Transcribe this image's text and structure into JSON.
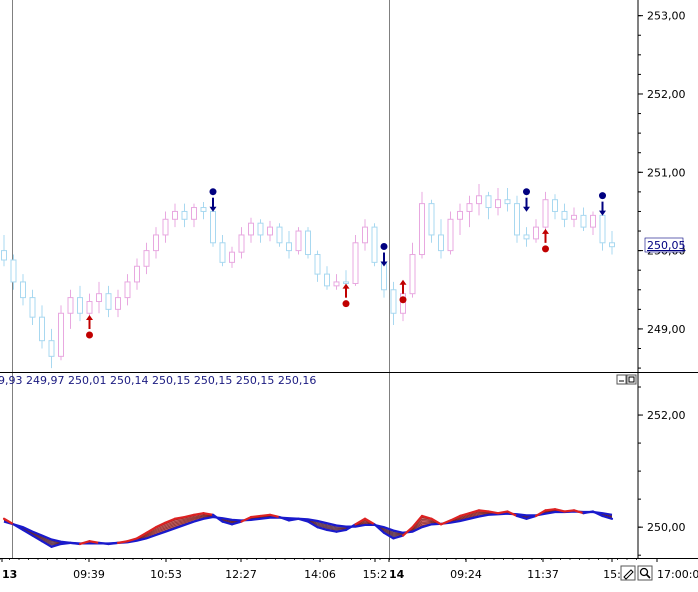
{
  "chart_data": [
    {
      "type": "candlestick",
      "panel": "price",
      "ylim": [
        248.45,
        253.2
      ],
      "y_ticks": [
        "253,00",
        "252,00",
        "251,00",
        "250,00",
        "249,00"
      ],
      "y_tick_values": [
        253,
        252,
        251,
        250,
        249
      ],
      "current_price_label": "250,05",
      "current_price": 250.05,
      "grid": false,
      "colors": {
        "up": "#e8a8e0",
        "down": "#a8d8f0",
        "buy_signal": "#c00000",
        "sell_signal": "#000080"
      },
      "candles": [
        {
          "o": 250.0,
          "h": 250.2,
          "l": 249.8,
          "c": 249.88
        },
        {
          "o": 249.88,
          "h": 249.95,
          "l": 249.5,
          "c": 249.6
        },
        {
          "o": 249.6,
          "h": 249.7,
          "l": 249.3,
          "c": 249.4
        },
        {
          "o": 249.4,
          "h": 249.5,
          "l": 249.05,
          "c": 249.15
        },
        {
          "o": 249.15,
          "h": 249.3,
          "l": 248.75,
          "c": 248.85
        },
        {
          "o": 248.85,
          "h": 249.0,
          "l": 248.5,
          "c": 248.65
        },
        {
          "o": 248.65,
          "h": 249.3,
          "l": 248.6,
          "c": 249.2
        },
        {
          "o": 249.2,
          "h": 249.5,
          "l": 249.0,
          "c": 249.4
        },
        {
          "o": 249.4,
          "h": 249.55,
          "l": 249.1,
          "c": 249.2
        },
        {
          "o": 249.2,
          "h": 249.45,
          "l": 249.0,
          "c": 249.35
        },
        {
          "o": 249.35,
          "h": 249.6,
          "l": 249.2,
          "c": 249.45
        },
        {
          "o": 249.45,
          "h": 249.55,
          "l": 249.15,
          "c": 249.25
        },
        {
          "o": 249.25,
          "h": 249.5,
          "l": 249.15,
          "c": 249.4
        },
        {
          "o": 249.4,
          "h": 249.7,
          "l": 249.3,
          "c": 249.6
        },
        {
          "o": 249.6,
          "h": 249.9,
          "l": 249.5,
          "c": 249.8
        },
        {
          "o": 249.8,
          "h": 250.1,
          "l": 249.7,
          "c": 250.0
        },
        {
          "o": 250.0,
          "h": 250.3,
          "l": 249.9,
          "c": 250.2
        },
        {
          "o": 250.2,
          "h": 250.5,
          "l": 250.1,
          "c": 250.4
        },
        {
          "o": 250.4,
          "h": 250.6,
          "l": 250.3,
          "c": 250.5
        },
        {
          "o": 250.5,
          "h": 250.6,
          "l": 250.3,
          "c": 250.4
        },
        {
          "o": 250.4,
          "h": 250.6,
          "l": 250.3,
          "c": 250.55
        },
        {
          "o": 250.55,
          "h": 250.62,
          "l": 250.4,
          "c": 250.5
        },
        {
          "o": 250.5,
          "h": 250.58,
          "l": 250.05,
          "c": 250.1
        },
        {
          "o": 250.1,
          "h": 250.2,
          "l": 249.8,
          "c": 249.85
        },
        {
          "o": 249.85,
          "h": 250.05,
          "l": 249.78,
          "c": 249.98
        },
        {
          "o": 249.98,
          "h": 250.3,
          "l": 249.9,
          "c": 250.2
        },
        {
          "o": 250.2,
          "h": 250.42,
          "l": 250.1,
          "c": 250.35
        },
        {
          "o": 250.35,
          "h": 250.4,
          "l": 250.1,
          "c": 250.2
        },
        {
          "o": 250.2,
          "h": 250.38,
          "l": 250.12,
          "c": 250.3
        },
        {
          "o": 250.3,
          "h": 250.35,
          "l": 250.05,
          "c": 250.1
        },
        {
          "o": 250.1,
          "h": 250.25,
          "l": 249.9,
          "c": 250.0
        },
        {
          "o": 250.0,
          "h": 250.3,
          "l": 249.95,
          "c": 250.25
        },
        {
          "o": 250.25,
          "h": 250.3,
          "l": 249.9,
          "c": 249.95
        },
        {
          "o": 249.95,
          "h": 250.0,
          "l": 249.6,
          "c": 249.7
        },
        {
          "o": 249.7,
          "h": 249.8,
          "l": 249.5,
          "c": 249.55
        },
        {
          "o": 249.55,
          "h": 249.7,
          "l": 249.5,
          "c": 249.6
        },
        {
          "o": 249.6,
          "h": 249.75,
          "l": 249.5,
          "c": 249.58
        },
        {
          "o": 249.58,
          "h": 250.2,
          "l": 249.55,
          "c": 250.1
        },
        {
          "o": 250.1,
          "h": 250.4,
          "l": 250.0,
          "c": 250.3
        },
        {
          "o": 250.3,
          "h": 250.35,
          "l": 249.8,
          "c": 249.85
        },
        {
          "o": 249.85,
          "h": 249.9,
          "l": 249.4,
          "c": 249.5
        },
        {
          "o": 249.5,
          "h": 249.6,
          "l": 249.05,
          "c": 249.2
        },
        {
          "o": 249.2,
          "h": 249.55,
          "l": 249.1,
          "c": 249.45
        },
        {
          "o": 249.45,
          "h": 250.1,
          "l": 249.4,
          "c": 249.95
        },
        {
          "o": 249.95,
          "h": 250.75,
          "l": 249.9,
          "c": 250.6
        },
        {
          "o": 250.6,
          "h": 250.65,
          "l": 250.1,
          "c": 250.2
        },
        {
          "o": 250.2,
          "h": 250.4,
          "l": 249.9,
          "c": 250.0
        },
        {
          "o": 250.0,
          "h": 250.5,
          "l": 249.95,
          "c": 250.4
        },
        {
          "o": 250.4,
          "h": 250.6,
          "l": 250.2,
          "c": 250.5
        },
        {
          "o": 250.5,
          "h": 250.7,
          "l": 250.3,
          "c": 250.6
        },
        {
          "o": 250.6,
          "h": 250.85,
          "l": 250.45,
          "c": 250.7
        },
        {
          "o": 250.7,
          "h": 250.75,
          "l": 250.4,
          "c": 250.55
        },
        {
          "o": 250.55,
          "h": 250.8,
          "l": 250.45,
          "c": 250.65
        },
        {
          "o": 250.65,
          "h": 250.8,
          "l": 250.5,
          "c": 250.6
        },
        {
          "o": 250.6,
          "h": 250.7,
          "l": 250.1,
          "c": 250.2
        },
        {
          "o": 250.2,
          "h": 250.3,
          "l": 250.05,
          "c": 250.15
        },
        {
          "o": 250.15,
          "h": 250.4,
          "l": 250.1,
          "c": 250.3
        },
        {
          "o": 250.3,
          "h": 250.75,
          "l": 250.25,
          "c": 250.65
        },
        {
          "o": 250.65,
          "h": 250.72,
          "l": 250.4,
          "c": 250.5
        },
        {
          "o": 250.5,
          "h": 250.6,
          "l": 250.3,
          "c": 250.4
        },
        {
          "o": 250.4,
          "h": 250.55,
          "l": 250.3,
          "c": 250.45
        },
        {
          "o": 250.45,
          "h": 250.55,
          "l": 250.25,
          "c": 250.3
        },
        {
          "o": 250.3,
          "h": 250.5,
          "l": 250.2,
          "c": 250.45
        },
        {
          "o": 250.45,
          "h": 250.5,
          "l": 250.0,
          "c": 250.1
        },
        {
          "o": 250.1,
          "h": 250.25,
          "l": 249.95,
          "c": 250.05
        }
      ],
      "signals": [
        {
          "type": "buy",
          "index": 9,
          "price": 249.05
        },
        {
          "type": "sell",
          "index": 22,
          "price": 250.65
        },
        {
          "type": "buy",
          "index": 36,
          "price": 249.45
        },
        {
          "type": "sell",
          "index": 40,
          "price": 249.95
        },
        {
          "type": "buy",
          "index": 42,
          "price": 249.5
        },
        {
          "type": "sell",
          "index": 55,
          "price": 250.65
        },
        {
          "type": "buy",
          "index": 57,
          "price": 250.15
        },
        {
          "type": "sell",
          "index": 63,
          "price": 250.6
        }
      ]
    },
    {
      "type": "line",
      "panel": "moving-average-ribbon",
      "header": "9,93 249,97 250,01 250,14 250,15 250,15 250,15 250,16",
      "ylim": [
        249.45,
        252.75
      ],
      "y_ticks": [
        "252,00",
        "250,00"
      ],
      "y_tick_values": [
        252,
        250
      ],
      "ribbon_lines": 8,
      "colors": {
        "fast_above": "#dd2222",
        "fast_below": "#1a1acc",
        "fill_red": "#b80000",
        "fill_blue": "#101060"
      },
      "fast": [
        250.15,
        250.05,
        249.95,
        249.85,
        249.75,
        249.65,
        249.7,
        249.72,
        249.7,
        249.75,
        249.72,
        249.7,
        249.72,
        249.75,
        249.8,
        249.9,
        250.0,
        250.08,
        250.15,
        250.18,
        250.22,
        250.25,
        250.22,
        250.1,
        250.05,
        250.1,
        250.18,
        250.2,
        250.22,
        250.18,
        250.12,
        250.15,
        250.1,
        250.0,
        249.95,
        249.92,
        249.95,
        250.05,
        250.15,
        250.05,
        249.9,
        249.8,
        249.85,
        250.0,
        250.2,
        250.15,
        250.05,
        250.12,
        250.2,
        250.25,
        250.3,
        250.28,
        250.25,
        250.28,
        250.2,
        250.15,
        250.2,
        250.3,
        250.32,
        250.28,
        250.3,
        250.25,
        250.28,
        250.2,
        250.15
      ],
      "slow": [
        250.1,
        250.05,
        250.0,
        249.92,
        249.85,
        249.78,
        249.74,
        249.72,
        249.71,
        249.71,
        249.71,
        249.71,
        249.72,
        249.73,
        249.76,
        249.8,
        249.86,
        249.92,
        249.98,
        250.04,
        250.1,
        250.15,
        250.18,
        250.16,
        250.13,
        250.12,
        250.13,
        250.15,
        250.17,
        250.17,
        250.16,
        250.15,
        250.14,
        250.11,
        250.07,
        250.03,
        250.01,
        250.01,
        250.04,
        250.04,
        250.0,
        249.94,
        249.9,
        249.92,
        250.0,
        250.05,
        250.06,
        250.08,
        250.11,
        250.15,
        250.19,
        250.22,
        250.23,
        250.24,
        250.23,
        250.21,
        250.21,
        250.24,
        250.27,
        250.27,
        250.28,
        250.27,
        250.27,
        250.25,
        250.22
      ]
    }
  ],
  "time_axis": {
    "labels": [
      "13",
      "09:39",
      "10:53",
      "12:27",
      "14:06",
      "15:2",
      "14",
      "09:24",
      "11:37",
      "15:",
      "17:00:0"
    ],
    "bold": [
      "13",
      "14"
    ],
    "day_separator_labels": [
      "13",
      "14"
    ]
  },
  "toolbar_icons": [
    "minimize-icon",
    "maximize-icon",
    "edit-icon",
    "zoom-icon"
  ]
}
